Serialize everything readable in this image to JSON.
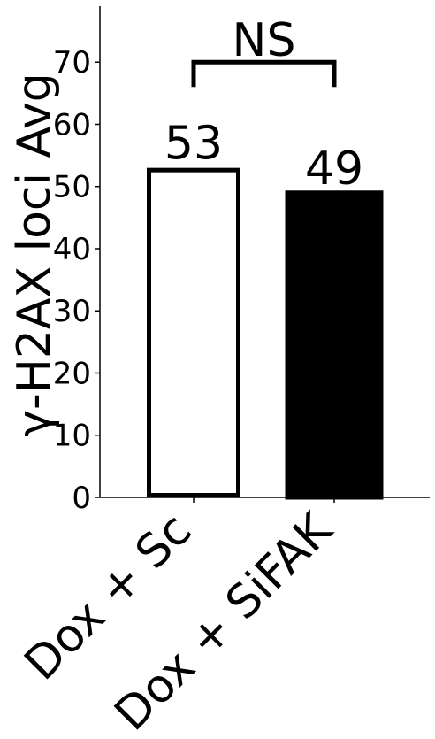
{
  "chart_data": {
    "type": "bar",
    "title": "",
    "xlabel": "",
    "ylabel": "γ-H2AX loci Avg",
    "ylim": [
      0,
      79
    ],
    "yticks": [
      0,
      10,
      20,
      30,
      40,
      50,
      60,
      70
    ],
    "categories": [
      "Dox + Sc",
      "Dox + SiFAK"
    ],
    "values": [
      53,
      49
    ],
    "value_labels": [
      "53",
      "49"
    ],
    "bar_fill": [
      "#ffffff",
      "#000000"
    ],
    "bar_edge": "#000000",
    "significance": {
      "label": "NS",
      "between": [
        0,
        1
      ],
      "y": 70
    },
    "grid": false,
    "legend": "none"
  }
}
